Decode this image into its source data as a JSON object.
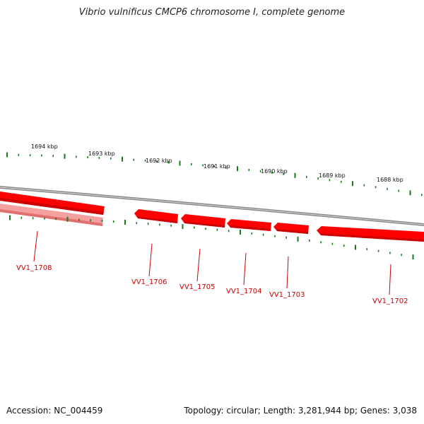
{
  "title": "Vibrio vulnificus CMCP6 chromosome I, complete genome",
  "footer": {
    "accession": "Accession: NC_004459",
    "topology": "Topology: circular; Length: 3,281,944 bp; Genes: 3,038"
  },
  "colors": {
    "backbone": "#8a8a8a",
    "gene": "#ff0000",
    "gene_light": "#f5a0a0",
    "tick": "#1a7a1a",
    "gene_label": "#cc0000"
  },
  "kbp_labels": [
    "1694 kbp",
    "1693 kbp",
    "1692 kbp",
    "1691 kbp",
    "1690 kbp",
    "1689 kbp",
    "1688 kbp"
  ],
  "genes": [
    {
      "label": "VV1_1708"
    },
    {
      "label": "VV1_1706"
    },
    {
      "label": "VV1_1705"
    },
    {
      "label": "VV1_1704"
    },
    {
      "label": "VV1_1703"
    },
    {
      "label": "VV1_1702"
    }
  ]
}
